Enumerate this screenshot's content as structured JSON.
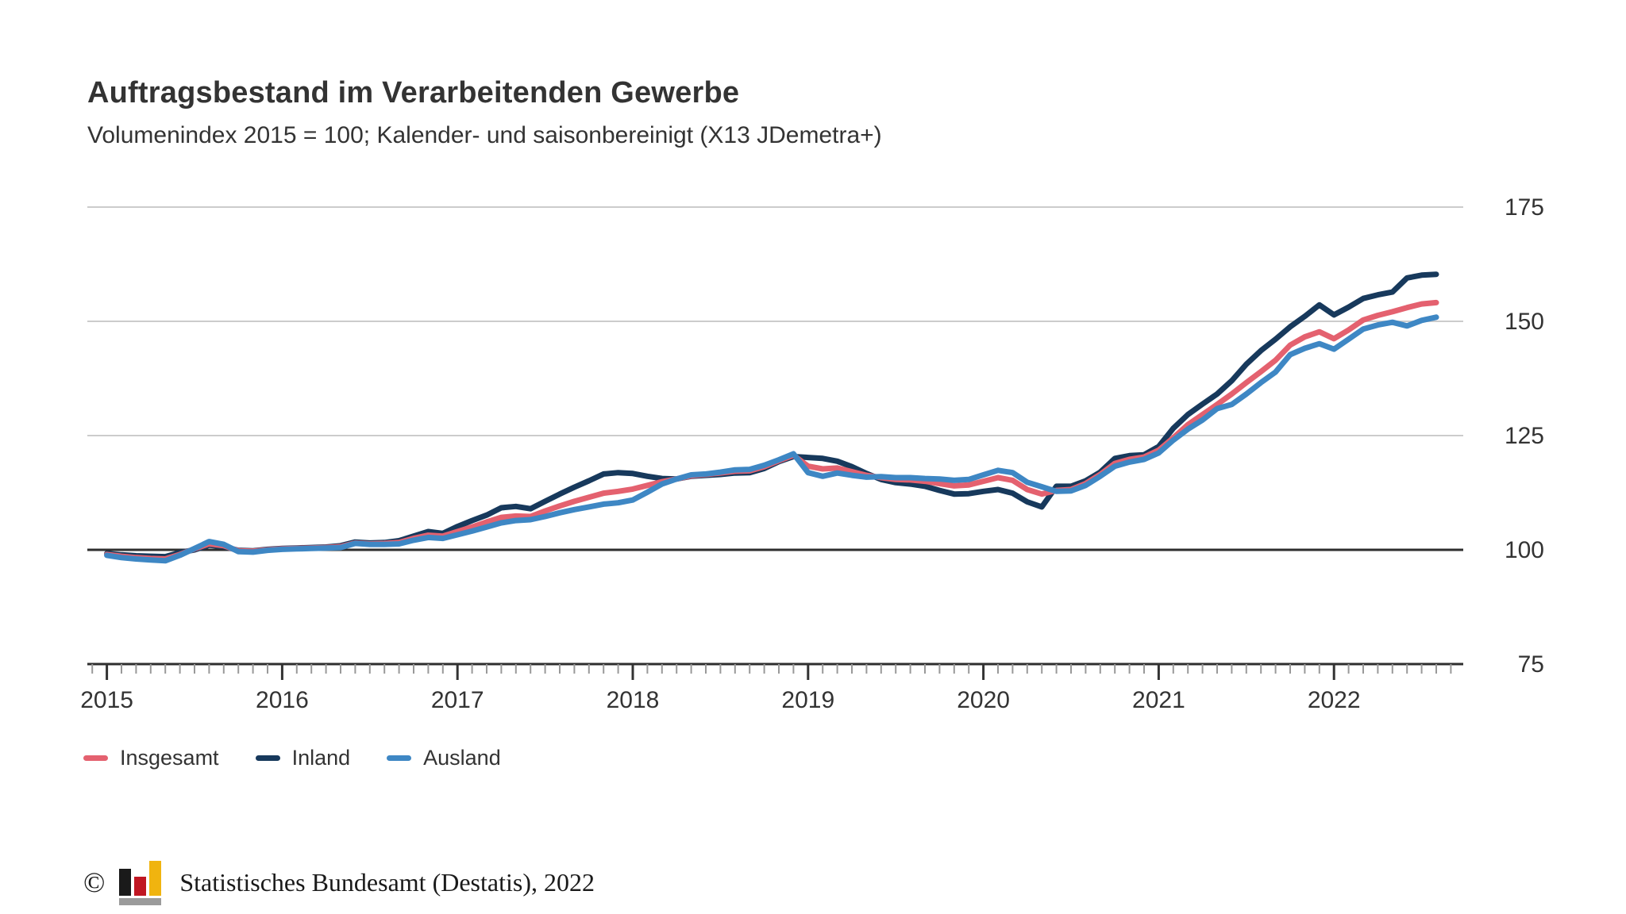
{
  "header": {
    "title": "Auftragsbestand im Verarbeitenden Gewerbe",
    "subtitle": "Volumenindex 2015 = 100; Kalender- und saisonbereinigt (X13 JDemetra+)"
  },
  "chart_data": {
    "type": "line",
    "x_frequency": "monthly",
    "x_start": "2015-01",
    "x_end": "2022-08",
    "years": [
      "2015",
      "2016",
      "2017",
      "2018",
      "2019",
      "2020",
      "2021",
      "2022"
    ],
    "y_ticks": [
      75,
      100,
      125,
      150,
      175
    ],
    "ylim": [
      75,
      175
    ],
    "baseline_value": 100,
    "grid": "horizontal",
    "legend_position": "bottom-left",
    "y_axis_side": "right",
    "series": [
      {
        "name": "Insgesamt",
        "color": "#E4616F",
        "values": [
          99.0,
          98.6,
          98.3,
          98.1,
          98.0,
          99.0,
          100.2,
          101.3,
          100.9,
          99.8,
          99.7,
          100.0,
          100.2,
          100.3,
          100.4,
          100.5,
          100.7,
          101.5,
          101.3,
          101.4,
          101.6,
          102.5,
          103.2,
          103.0,
          104.0,
          105.0,
          106.1,
          107.1,
          107.4,
          107.3,
          108.5,
          109.6,
          110.6,
          111.5,
          112.4,
          112.8,
          113.3,
          114.1,
          114.9,
          115.5,
          116.2,
          116.5,
          116.8,
          117.2,
          117.3,
          118.2,
          119.5,
          120.7,
          118.3,
          117.7,
          117.9,
          117.1,
          116.3,
          115.8,
          115.4,
          115.3,
          115.0,
          114.5,
          114.0,
          114.2,
          115.0,
          115.8,
          115.2,
          113.2,
          112.2,
          113.0,
          113.2,
          114.5,
          116.5,
          118.9,
          119.8,
          120.3,
          121.8,
          124.5,
          127.4,
          129.6,
          131.8,
          134.1,
          136.6,
          139.0,
          141.5,
          144.8,
          146.6,
          147.7,
          146.2,
          148.1,
          150.3,
          151.3,
          152.1,
          153.0,
          153.8,
          154.1
        ]
      },
      {
        "name": "Inland",
        "color": "#17395C",
        "values": [
          99.2,
          98.9,
          98.7,
          98.6,
          98.5,
          99.4,
          100.0,
          101.0,
          100.7,
          99.9,
          99.8,
          100.1,
          100.3,
          100.4,
          100.5,
          100.6,
          100.9,
          101.7,
          101.5,
          101.6,
          102.0,
          103.0,
          104.0,
          103.6,
          105.1,
          106.4,
          107.6,
          109.2,
          109.5,
          109.0,
          110.6,
          112.2,
          113.7,
          115.1,
          116.6,
          116.9,
          116.7,
          116.1,
          115.6,
          115.5,
          116.1,
          116.3,
          116.5,
          116.8,
          116.9,
          117.8,
          119.3,
          120.4,
          120.2,
          120.0,
          119.4,
          118.2,
          116.7,
          115.4,
          114.7,
          114.4,
          113.9,
          113.0,
          112.2,
          112.3,
          112.8,
          113.2,
          112.4,
          110.5,
          109.4,
          113.9,
          113.9,
          115.1,
          117.0,
          120.0,
          120.6,
          120.8,
          122.6,
          126.6,
          129.6,
          131.9,
          134.1,
          137.0,
          140.6,
          143.6,
          146.1,
          148.8,
          151.1,
          153.6,
          151.4,
          153.1,
          155.0,
          155.8,
          156.4,
          159.5,
          160.1,
          160.3
        ]
      },
      {
        "name": "Ausland",
        "color": "#3E87C4",
        "values": [
          98.8,
          98.3,
          98.0,
          97.8,
          97.6,
          98.8,
          100.3,
          101.8,
          101.2,
          99.6,
          99.5,
          99.9,
          100.1,
          100.2,
          100.3,
          100.4,
          100.5,
          101.4,
          101.2,
          101.2,
          101.3,
          102.1,
          102.7,
          102.5,
          103.3,
          104.1,
          105.0,
          105.9,
          106.4,
          106.6,
          107.3,
          108.1,
          108.8,
          109.4,
          110.0,
          110.3,
          110.9,
          112.6,
          114.4,
          115.5,
          116.4,
          116.6,
          117.0,
          117.5,
          117.6,
          118.5,
          119.7,
          121.0,
          116.9,
          116.1,
          116.8,
          116.3,
          115.9,
          116.0,
          115.8,
          115.8,
          115.6,
          115.5,
          115.2,
          115.4,
          116.4,
          117.4,
          116.9,
          114.8,
          113.8,
          112.8,
          112.9,
          114.1,
          116.1,
          118.3,
          119.2,
          119.8,
          121.2,
          124.0,
          126.4,
          128.4,
          130.9,
          131.8,
          134.1,
          136.6,
          138.9,
          142.7,
          144.1,
          145.1,
          143.9,
          146.1,
          148.3,
          149.2,
          149.8,
          149.0,
          150.2,
          150.9
        ]
      }
    ]
  },
  "footer": {
    "copyright_symbol": "©",
    "source": "Statistisches Bundesamt (Destatis), 2022",
    "logo_colors": {
      "black": "#1a1a1a",
      "red": "#c01622",
      "gold": "#f0b40f",
      "base": "#9b9b9b"
    }
  },
  "colors": {
    "grid": "#cccccc",
    "axis": "#2e2e2e",
    "tick_minor": "#999999",
    "tick_major": "#333333",
    "text": "#333333"
  }
}
